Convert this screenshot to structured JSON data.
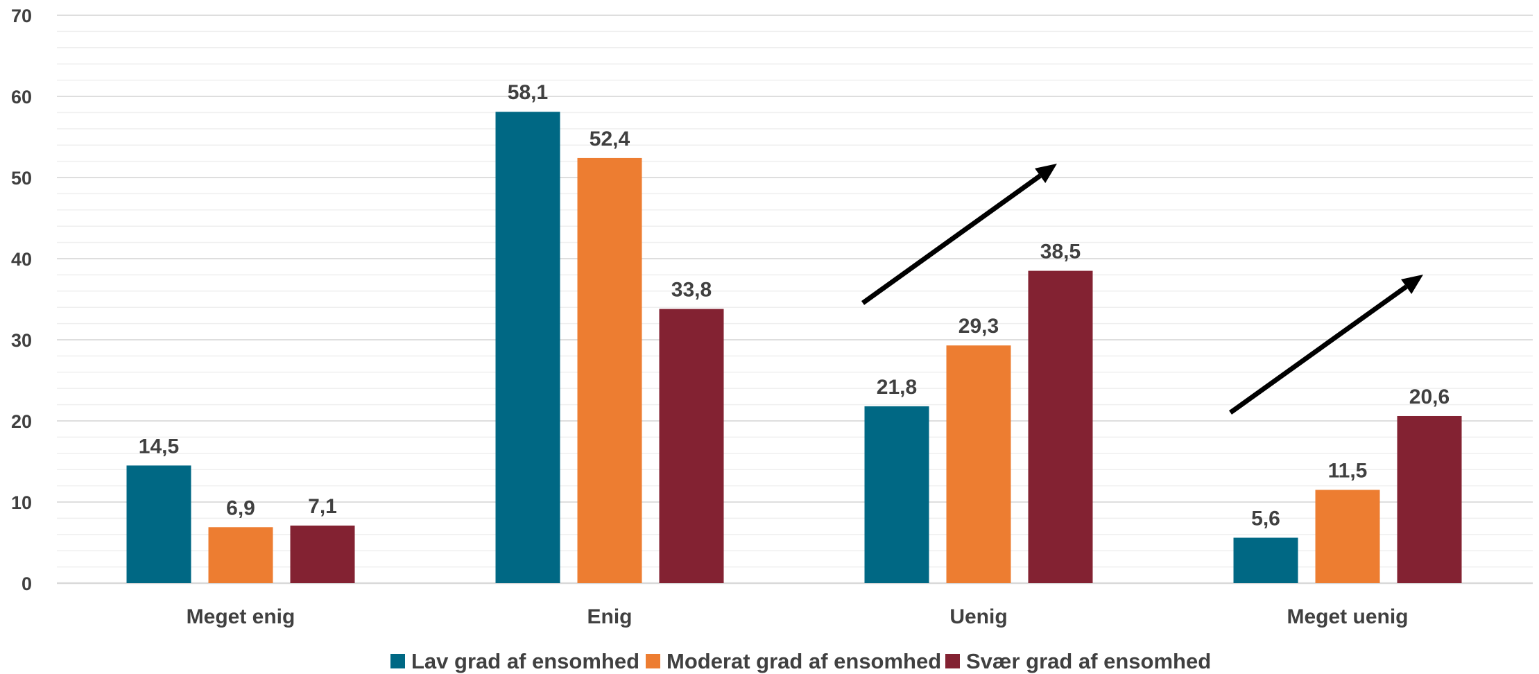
{
  "chart_data": {
    "type": "bar",
    "categories": [
      "Meget enig",
      "Enig",
      "Uenig",
      "Meget uenig"
    ],
    "series": [
      {
        "name": "Lav grad af ensomhed",
        "values": [
          14.5,
          58.1,
          21.8,
          5.6
        ],
        "color": "#006884"
      },
      {
        "name": "Moderat grad af ensomhed",
        "values": [
          6.9,
          52.4,
          29.3,
          11.5
        ],
        "color": "#ED7D31"
      },
      {
        "name": "Svær grad af ensomhed",
        "values": [
          7.1,
          33.8,
          38.5,
          20.6
        ],
        "color": "#832232"
      }
    ],
    "ylim": [
      0,
      70
    ],
    "yticks": [
      0,
      10,
      20,
      30,
      40,
      50,
      60,
      70
    ],
    "minor_step": 2,
    "grid": true,
    "legend": "bottom",
    "decimal_separator": ",",
    "annotations": [
      {
        "type": "arrow",
        "category": "Uenig",
        "direction": "up-right"
      },
      {
        "type": "arrow",
        "category": "Meget uenig",
        "direction": "up-right"
      }
    ],
    "colors": {
      "grid_major": "#d9d9d9",
      "grid_minor": "#efefef",
      "text": "#404040",
      "arrow": "#000000"
    }
  }
}
